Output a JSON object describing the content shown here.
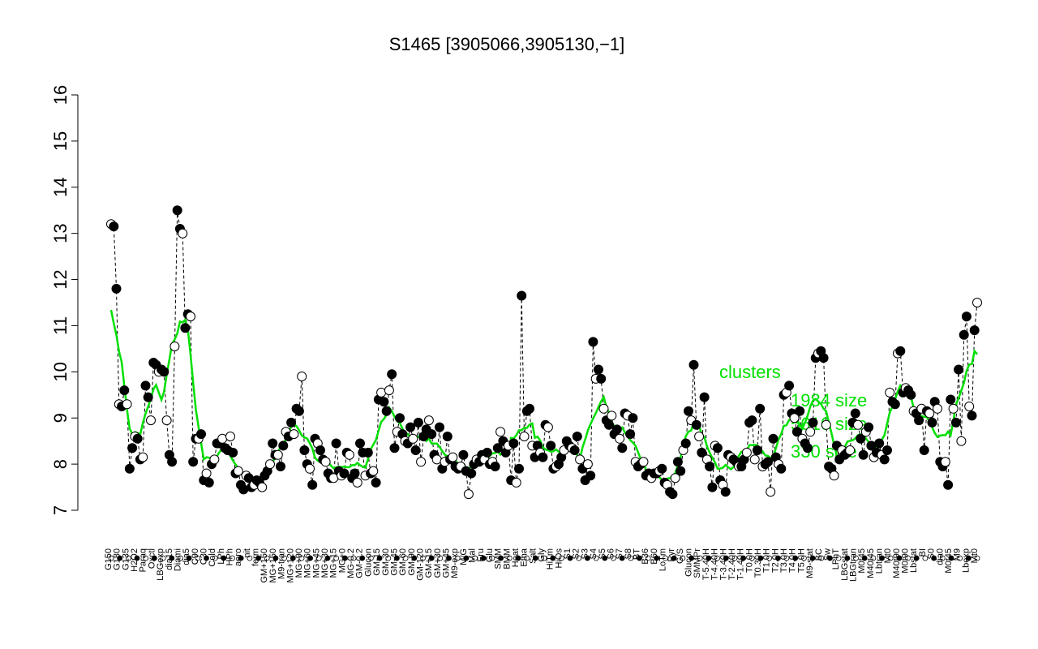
{
  "chart_data": {
    "type": "scatter",
    "title": "S1465 [3905066,3905130,−1]",
    "xlabel": "",
    "ylabel": "",
    "ylim": [
      7,
      16
    ],
    "yticks": [
      "7",
      "8",
      "9",
      "10",
      "11",
      "12",
      "13",
      "14",
      "15",
      "16"
    ],
    "grid": false,
    "legend_position": "right",
    "legend": [
      "clusters",
      "1984 size",
      "5616 size",
      "330 size"
    ],
    "colors": {
      "line": "#00e000",
      "points_filled": "#000000",
      "points_open": "#ffffff",
      "legend_text": "#00e000"
    },
    "x_labels": [
      "G150",
      "G180",
      "G135",
      "H2O2",
      "Paraq",
      "Oxctl",
      "LBGexp",
      "dia15",
      "Diami",
      "dia5",
      "C90",
      "C30",
      "Cold",
      "LPh",
      "HPh",
      "aero",
      "nit",
      "ferm",
      "GM+150",
      "MG+150",
      "M9-tran",
      "MG+120",
      "MG+90",
      "MG+60",
      "MG+45",
      "MG+30",
      "MG+15",
      "MG+0",
      "MG-0.2",
      "GM-0.2",
      "Glucon",
      "GM-15",
      "GM-30",
      "GM-45",
      "GM-60",
      "GM-90",
      "GM-120",
      "GM+15",
      "GM+30",
      "GM+45",
      "M9-exp",
      "M/G",
      "Mal",
      "Fru",
      "Glu",
      "SMM",
      "BMM",
      "Heat",
      "Etha",
      "Salt",
      "Gly",
      "HiTm",
      "HiOs",
      "S1",
      "S2",
      "S3",
      "S4",
      "S5",
      "S6",
      "S7",
      "S8",
      "BT",
      "B36",
      "B60",
      "LoTm",
      "Pyr",
      "G/S",
      "Glucon",
      "SMMPr",
      "T-5.40H",
      "T-4.40H",
      "T-3.40H",
      "T-2.40H",
      "T-1.40H",
      "T0.0H",
      "T0.30H",
      "T1.0H",
      "T2.0H",
      "T3.0H",
      "T4.0H",
      "T5.0H",
      "M9-stat",
      "BC",
      "Sw",
      "LPhT",
      "LBGstat",
      "LBGtran",
      "M0t45",
      "M40t45",
      "Lbtran",
      "Mt0",
      "M40t90",
      "M0t90",
      "Lbstat",
      "BI",
      "S0",
      "dia0",
      "M0t45",
      "M9",
      "Lbexp",
      "Mt0"
    ],
    "series": [
      {
        "values": [
          13.2,
          13.15,
          11.8,
          9.3,
          9.25,
          9.6,
          9.3,
          7.9,
          8.35,
          8.6,
          8.55,
          8.1,
          8.15,
          9.7,
          9.45,
          8.95,
          10.2,
          10.15,
          10.0,
          10.05,
          10.0,
          8.95,
          8.2,
          8.05,
          10.55,
          13.5,
          13.1,
          13.0,
          10.95,
          11.25,
          11.2,
          8.05,
          8.55,
          8.55,
          8.65,
          7.65,
          7.8,
          7.6,
          8.0,
          8.1,
          8.45,
          8.45,
          8.55,
          8.35,
          8.3,
          8.6,
          8.25,
          7.8,
          7.85,
          7.55,
          7.45,
          7.75,
          7.7,
          7.5,
          7.55,
          7.65,
          7.6,
          7.5,
          7.75,
          7.85,
          8.0,
          8.45,
          8.2,
          8.2,
          7.95,
          8.4,
          8.7,
          8.6,
          8.9,
          8.65,
          9.2,
          9.15,
          9.9,
          8.3,
          8.0,
          7.9,
          7.55,
          8.55,
          8.45,
          8.3,
          8.1,
          8.05,
          7.8,
          7.7,
          7.7,
          8.45,
          7.85,
          7.75,
          7.8,
          8.25,
          8.2,
          7.7,
          7.8,
          7.6,
          8.45,
          8.25,
          7.75,
          8.25,
          7.8,
          7.85,
          7.6,
          9.4,
          9.55,
          9.35,
          9.15,
          9.6,
          9.95,
          8.35,
          8.7,
          9.0,
          8.65,
          8.5,
          8.45,
          8.8,
          8.55,
          8.3,
          8.9,
          8.05,
          8.6,
          8.75,
          8.95,
          8.65,
          8.2,
          8.1,
          8.8,
          7.9,
          8.05,
          8.6,
          8.1,
          8.15,
          7.95,
          7.9,
          7.95,
          8.2,
          7.85,
          7.35,
          7.8,
          8.0,
          8.1,
          8.05,
          8.2,
          8.1,
          8.25,
          8.0,
          8.05,
          7.95,
          8.35,
          8.7,
          8.5,
          8.25,
          8.4,
          7.65,
          8.45,
          7.6,
          7.9,
          11.65,
          8.6,
          9.15,
          9.2,
          8.4,
          8.15,
          8.4,
          8.25,
          8.15,
          8.85,
          8.8,
          8.4,
          7.9,
          7.95,
          8.0,
          8.15,
          8.3,
          8.5,
          8.4,
          8.35,
          8.3,
          8.6,
          8.1,
          7.9,
          7.65,
          8.0,
          7.75,
          10.65,
          9.85,
          10.05,
          9.85,
          9.2,
          8.95,
          8.85,
          9.05,
          8.65,
          8.75,
          8.55,
          8.35,
          9.1,
          9.05,
          8.65,
          9.0,
          8.05,
          7.95,
          8.0,
          8.05,
          7.75,
          7.8,
          7.7,
          7.8,
          7.8,
          7.85,
          7.9,
          7.6,
          7.55,
          7.4,
          7.35,
          7.7,
          8.05,
          7.85,
          8.3,
          8.45,
          9.15,
          8.95,
          10.15,
          8.85,
          8.6,
          8.25,
          9.45,
          8.1,
          7.95,
          7.5,
          8.4,
          8.35,
          7.65,
          7.55,
          7.4,
          8.2,
          8.15,
          8.1,
          8.05,
          7.95,
          7.95,
          8.1,
          8.25,
          8.9,
          8.95,
          8.1,
          8.3,
          9.2,
          7.95,
          8.0,
          8.05,
          7.4,
          8.55,
          8.15,
          8.0,
          7.9,
          9.5,
          9.55,
          9.7,
          9.1,
          9.0,
          8.7,
          9.15,
          8.55,
          8.45,
          8.35,
          8.7,
          8.9,
          10.3,
          10.4,
          10.45,
          10.3,
          8.85,
          7.95,
          7.9,
          7.75,
          8.4,
          8.1,
          8.3,
          8.2,
          8.25,
          8.3,
          8.9,
          9.1,
          8.85,
          8.55,
          8.2,
          8.7,
          8.8,
          8.4,
          8.15,
          8.25,
          8.45,
          8.2,
          8.1,
          8.3,
          9.55,
          9.35,
          9.3,
          10.4,
          10.45,
          9.55,
          9.65,
          9.6,
          9.5,
          9.15,
          9.1,
          8.95,
          9.2,
          8.3,
          9.15,
          9.1,
          8.9,
          9.35,
          9.2,
          8.05,
          7.95,
          8.05,
          7.55,
          9.4,
          9.2,
          8.9,
          10.05,
          8.5,
          10.8,
          11.2,
          9.25,
          9.05,
          10.9,
          11.5
        ]
      }
    ]
  }
}
